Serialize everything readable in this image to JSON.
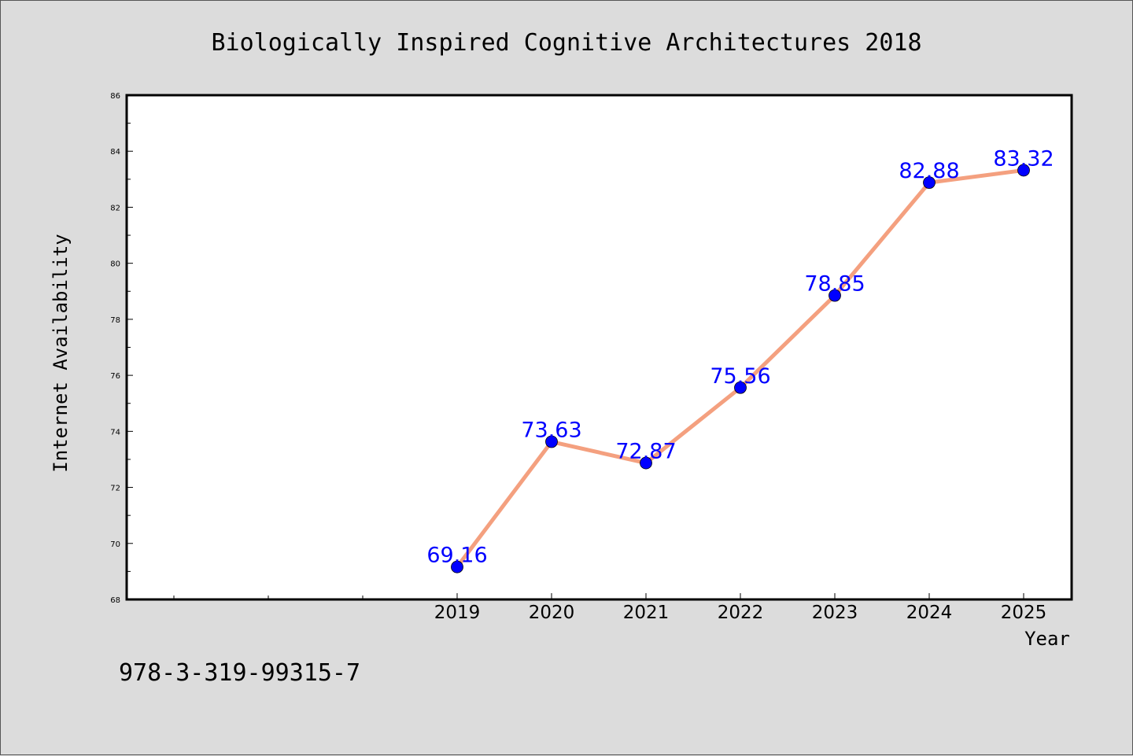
{
  "chart_data": {
    "type": "line",
    "title": "Biologically Inspired Cognitive Architectures 2018",
    "xlabel": "Year",
    "ylabel": "Internet Availability",
    "x": [
      "2019",
      "2020",
      "2021",
      "2022",
      "2023",
      "2024",
      "2025"
    ],
    "series": [
      {
        "values": [
          69.16,
          73.63,
          72.87,
          75.56,
          78.85,
          82.88,
          83.32
        ],
        "labels": [
          "69.16",
          "73.63",
          "72.87",
          "75.56",
          "78.85",
          "82.88",
          "83.32"
        ]
      }
    ],
    "ylim": [
      68,
      86
    ],
    "yticks": [
      68,
      70,
      72,
      74,
      76,
      78,
      80,
      82,
      84,
      86
    ],
    "x_extra_slots_left": 3,
    "grid": false,
    "colors": {
      "line": "#f4a07f",
      "marker": "#0000ff",
      "label": "#0000ff",
      "background": "#dcdcdc",
      "plot_background": "#ffffff"
    },
    "annotation": "978-3-319-99315-7"
  }
}
